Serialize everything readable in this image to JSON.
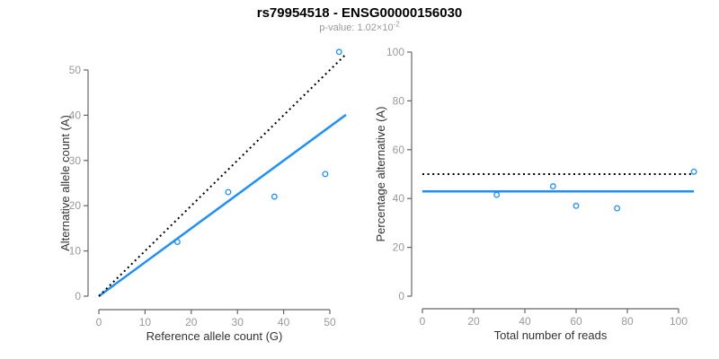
{
  "header": {
    "title": "rs79954518 - ENSG00000156030",
    "p_value_prefix": "p-value: 1.02×10",
    "p_value_exponent": "-2"
  },
  "colors": {
    "point": "#1e8fff",
    "fit_line": "#1e8fff",
    "expected_line": "#000000",
    "axis": "#666666",
    "tick_label": "#999999",
    "axis_title": "#333333",
    "subtitle": "#999999",
    "title": "#000000"
  },
  "chart_data": [
    {
      "type": "scatter",
      "xlabel": "Reference allele count (G)",
      "ylabel": "Alternative allele count (A)",
      "xlim": [
        0,
        53.5
      ],
      "ylim": [
        0,
        54
      ],
      "xticks": [
        0,
        10,
        20,
        30,
        40,
        50
      ],
      "yticks": [
        0,
        10,
        20,
        30,
        40,
        50
      ],
      "grid": false,
      "legend": "none",
      "points": [
        [
          17,
          12
        ],
        [
          28,
          23
        ],
        [
          38,
          22
        ],
        [
          49,
          27
        ],
        [
          52,
          54
        ]
      ],
      "lines": [
        {
          "name": "fitted-allelic-ratio",
          "style": "solid",
          "color": "#1e8fff",
          "from": [
            0,
            0
          ],
          "to": [
            53.5,
            40.1
          ]
        },
        {
          "name": "identity-expected",
          "style": "dotted",
          "color": "#000000",
          "from": [
            0,
            0
          ],
          "to": [
            53.5,
            53.5
          ]
        }
      ]
    },
    {
      "type": "scatter",
      "xlabel": "Total number of reads",
      "ylabel": "Percentage alternative (A)",
      "xlim": [
        0,
        106
      ],
      "ylim": [
        0,
        100
      ],
      "xticks": [
        0,
        20,
        40,
        60,
        80,
        100
      ],
      "yticks": [
        0,
        20,
        40,
        60,
        80,
        100
      ],
      "grid": false,
      "legend": "none",
      "points": [
        [
          29,
          41.5
        ],
        [
          51,
          45
        ],
        [
          60,
          37
        ],
        [
          76,
          36
        ],
        [
          106,
          51
        ]
      ],
      "lines": [
        {
          "name": "mean-percentage",
          "style": "solid",
          "color": "#1e8fff",
          "from": [
            0,
            42.9
          ],
          "to": [
            106,
            42.9
          ]
        },
        {
          "name": "expected-50-percent",
          "style": "dotted",
          "color": "#000000",
          "from": [
            0,
            50
          ],
          "to": [
            106,
            50
          ]
        }
      ]
    }
  ]
}
